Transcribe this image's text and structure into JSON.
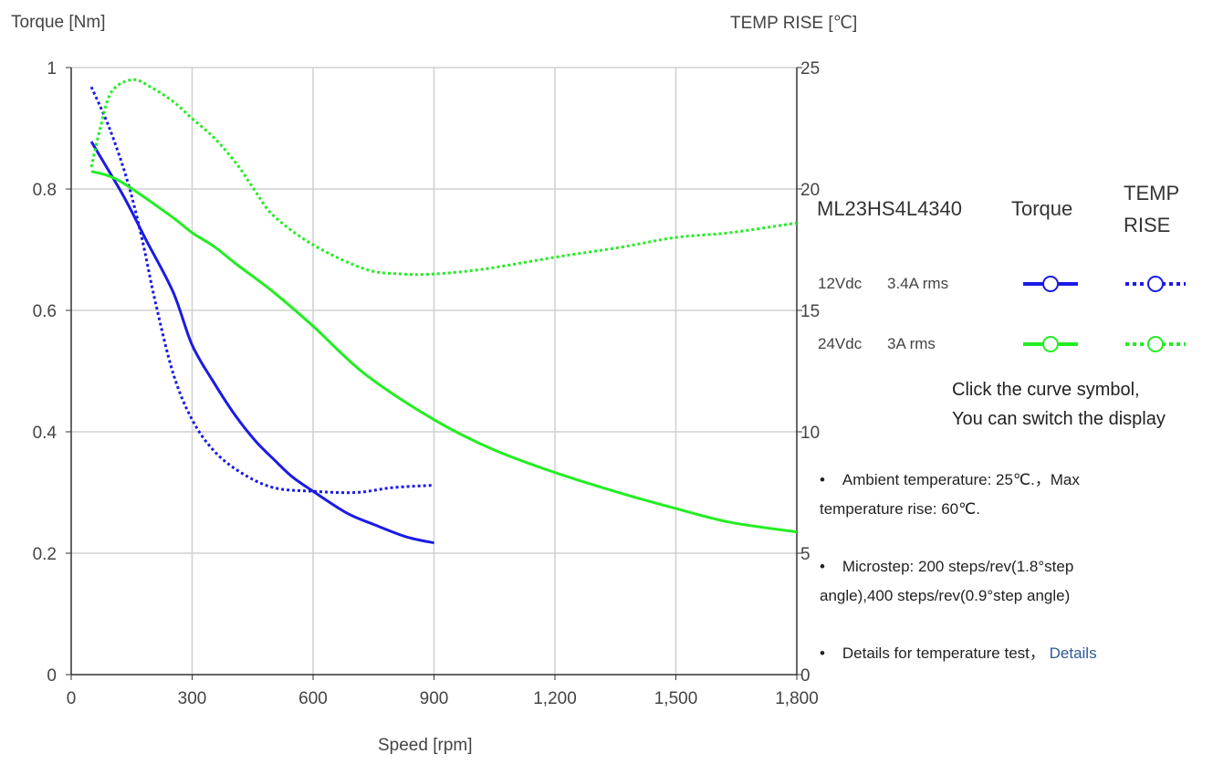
{
  "chart_data": {
    "type": "line",
    "title": "ML23HS4L4340",
    "xlabel": "Speed [rpm]",
    "ylabel": "Torque  [Nm]",
    "y2label": "TEMP RISE [℃]",
    "xlim": [
      0,
      1800
    ],
    "ylim": [
      0,
      1
    ],
    "y2lim": [
      0,
      25
    ],
    "xticks": [
      0,
      300,
      600,
      900,
      1200,
      1500,
      1800
    ],
    "xtick_labels": [
      "0",
      "300",
      "600",
      "900",
      "1,200",
      "1,500",
      "1,800"
    ],
    "yticks": [
      0,
      0.2,
      0.4,
      0.6,
      0.8,
      1
    ],
    "ytick_labels": [
      "0",
      "0.2",
      "0.4",
      "0.6",
      "0.8",
      "1"
    ],
    "y2ticks": [
      0,
      5,
      10,
      15,
      20,
      25
    ],
    "y2tick_labels": [
      "0",
      "5",
      "10",
      "15",
      "20",
      "25"
    ],
    "grid": true,
    "legend": "right",
    "series": [
      {
        "name": "12Vdc 3.4A rms Torque",
        "axis": "left",
        "style": "solid",
        "color": "#1a1ae6",
        "x": [
          50,
          130,
          185,
          253,
          300,
          355,
          407,
          457,
          502,
          548,
          600,
          684,
          752,
          831,
          900
        ],
        "y": [
          0.878,
          0.788,
          0.717,
          0.63,
          0.543,
          0.48,
          0.427,
          0.385,
          0.355,
          0.326,
          0.302,
          0.266,
          0.247,
          0.227,
          0.217
        ]
      },
      {
        "name": "12Vdc 3.4A rms TEMP RISE",
        "axis": "right",
        "style": "dotted",
        "color": "#1a1ae6",
        "x": [
          50,
          95,
          140,
          175,
          208,
          253,
          300,
          355,
          423,
          502,
          600,
          706,
          797,
          900
        ],
        "y": [
          24.2,
          22.5,
          20.3,
          18.0,
          15.4,
          12.4,
          10.5,
          9.2,
          8.3,
          7.7,
          7.55,
          7.5,
          7.7,
          7.8
        ]
      },
      {
        "name": "24Vdc 3A rms Torque",
        "axis": "left",
        "style": "solid",
        "color": "#22ee22",
        "x": [
          50,
          118,
          242,
          300,
          355,
          412,
          502,
          600,
          729,
          900,
          1046,
          1204,
          1363,
          1498,
          1634,
          1800
        ],
        "y": [
          0.829,
          0.814,
          0.758,
          0.728,
          0.705,
          0.675,
          0.63,
          0.574,
          0.495,
          0.42,
          0.371,
          0.332,
          0.299,
          0.274,
          0.251,
          0.235
        ]
      },
      {
        "name": "24Vdc 3A rms TEMP RISE",
        "axis": "right",
        "style": "dotted",
        "color": "#22ee22",
        "x": [
          50,
          72,
          100,
          152,
          197,
          253,
          300,
          355,
          412,
          457,
          502,
          600,
          729,
          820,
          900,
          1023,
          1204,
          1363,
          1498,
          1634,
          1800
        ],
        "y": [
          20.9,
          22.5,
          24.0,
          24.5,
          24.2,
          23.6,
          22.9,
          22.1,
          21.0,
          19.9,
          18.9,
          17.7,
          16.7,
          16.5,
          16.5,
          16.7,
          17.2,
          17.6,
          18.0,
          18.2,
          18.6
        ]
      }
    ]
  },
  "legend": {
    "model": "ML23HS4L4340",
    "col_torque": "Torque",
    "col_temp_1": "TEMP",
    "col_temp_2": "RISE",
    "rows": [
      {
        "label_v": "12Vdc",
        "label_a": "3.4A rms",
        "color": "#1a1ae6"
      },
      {
        "label_v": "24Vdc",
        "label_a": "3A rms",
        "color": "#22ee22"
      }
    ],
    "hint_1": "Click the curve symbol,",
    "hint_2": "You can switch the display"
  },
  "notes": {
    "bullet": "•",
    "ambient_1": "Ambient temperature: 25℃.，Max",
    "ambient_2": "temperature rise: 60℃.",
    "microstep_1": "Microstep: 200 steps/rev(1.8°step",
    "microstep_2": "angle),400 steps/rev(0.9°step angle)",
    "details_text": "Details for temperature test，",
    "details_link": "Details"
  }
}
